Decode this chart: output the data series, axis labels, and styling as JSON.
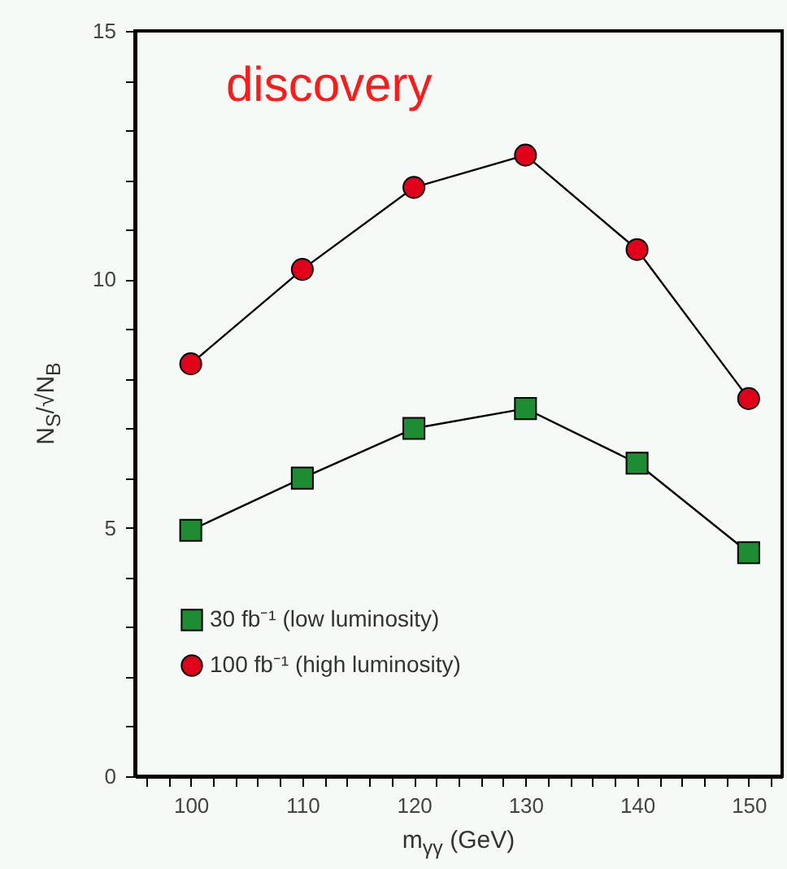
{
  "chart_data": {
    "type": "line",
    "xlabel": "m$_{γγ}$ (GeV)",
    "ylabel": "N$_{S}$/√N$_{B}$",
    "annotations": [
      "discovery"
    ],
    "x": [
      100,
      110,
      120,
      130,
      140,
      150
    ],
    "series": [
      {
        "name": "30 fb⁻¹ (low luminosity)",
        "color": "#1e8c32",
        "marker": "square",
        "values": [
          4.95,
          6.0,
          7.0,
          7.4,
          6.3,
          4.5
        ]
      },
      {
        "name": "100 fb⁻¹ (high luminosity)",
        "color": "#e0001a",
        "marker": "circle",
        "values": [
          8.3,
          10.2,
          11.85,
          12.5,
          10.6,
          7.6
        ]
      }
    ],
    "xlim": [
      95,
      153
    ],
    "xticks": [
      {
        "value": 96,
        "label": null
      },
      {
        "value": 98,
        "label": null
      },
      100,
      {
        "value": 102,
        "label": null
      },
      {
        "value": 104,
        "label": null
      },
      {
        "value": 106,
        "label": null
      },
      {
        "value": 108,
        "label": null
      },
      110,
      {
        "value": 112,
        "label": null
      },
      {
        "value": 114,
        "label": null
      },
      {
        "value": 116,
        "label": null
      },
      {
        "value": 118,
        "label": null
      },
      120,
      {
        "value": 122,
        "label": null
      },
      {
        "value": 124,
        "label": null
      },
      {
        "value": 126,
        "label": null
      },
      {
        "value": 128,
        "label": null
      },
      130,
      {
        "value": 132,
        "label": null
      },
      {
        "value": 134,
        "label": null
      },
      {
        "value": 136,
        "label": null
      },
      {
        "value": 138,
        "label": null
      },
      140,
      {
        "value": 142,
        "label": null
      },
      {
        "value": 144,
        "label": null
      },
      {
        "value": 146,
        "label": null
      },
      {
        "value": 148,
        "label": null
      },
      150,
      {
        "value": 152,
        "label": null
      }
    ],
    "ylim": [
      0,
      15
    ],
    "yticks": [
      0,
      {
        "value": 1,
        "label": null
      },
      {
        "value": 2,
        "label": null
      },
      {
        "value": 3,
        "label": null
      },
      {
        "value": 4,
        "label": null
      },
      5,
      {
        "value": 6,
        "label": null
      },
      {
        "value": 7,
        "label": null
      },
      {
        "value": 8,
        "label": null
      },
      {
        "value": 9,
        "label": null
      },
      10,
      {
        "value": 11,
        "label": null
      },
      {
        "value": 12,
        "label": null
      },
      {
        "value": 13,
        "label": null
      },
      {
        "value": 14,
        "label": null
      },
      15
    ],
    "grid": false,
    "legend": "bottom left",
    "line_style": "solid"
  }
}
